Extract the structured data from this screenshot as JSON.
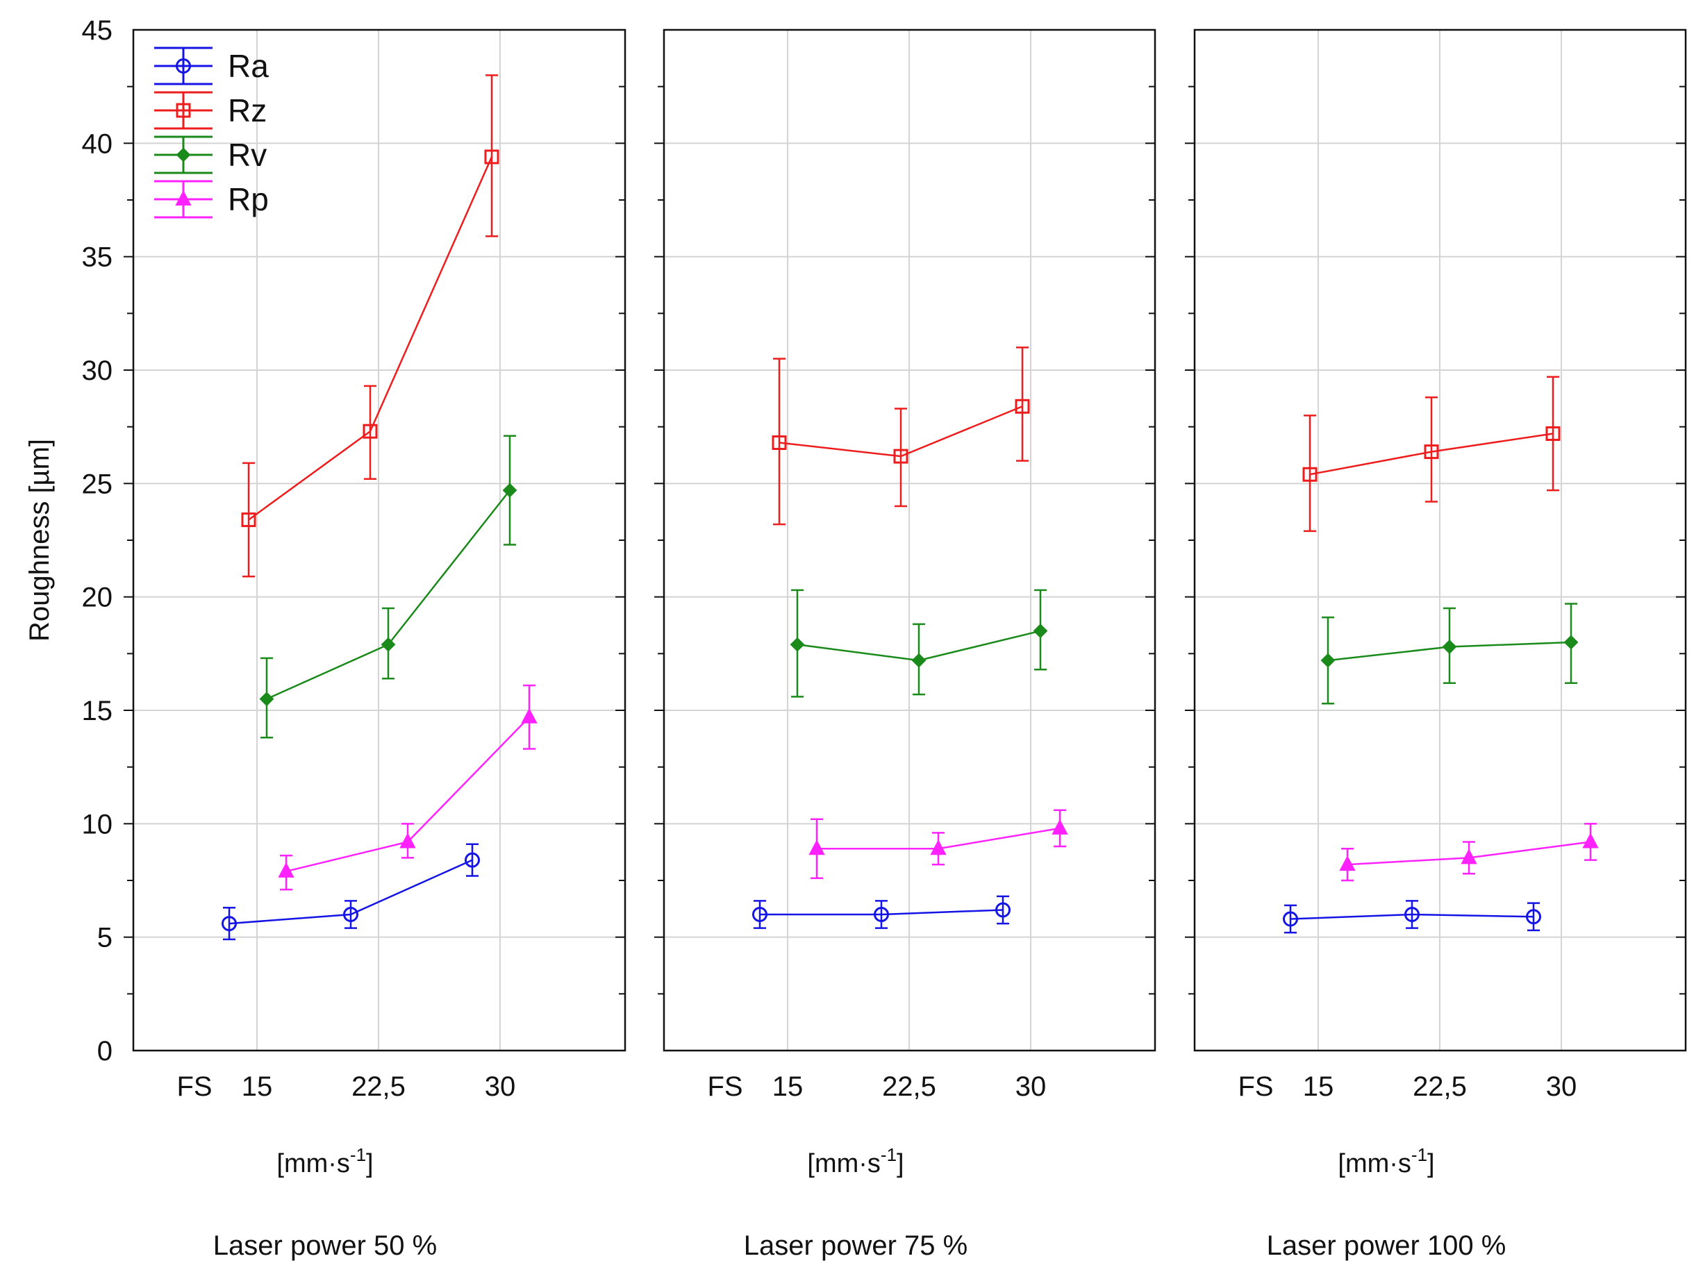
{
  "chart_data": {
    "type": "line",
    "ylabel": "Roughness [µm]",
    "ylim": [
      0,
      45
    ],
    "yticks": [
      0,
      5,
      10,
      15,
      20,
      25,
      30,
      35,
      40,
      45
    ],
    "grid": true,
    "legend_position": "top-left",
    "x_unit": "[mm·s",
    "x_unit_exp": "-1",
    "x_unit_close": "]",
    "x_categories": [
      "15",
      "22,5",
      "30"
    ],
    "x_prefix_label": "FS",
    "series_styles": [
      {
        "name": "Ra",
        "color": "#1414e6",
        "marker": "circle"
      },
      {
        "name": "Rz",
        "color": "#ee1c1c",
        "marker": "square"
      },
      {
        "name": "Rv",
        "color": "#1a8a1a",
        "marker": "diamond"
      },
      {
        "name": "Rp",
        "color": "#ff22ff",
        "marker": "triangle"
      }
    ],
    "panels": [
      {
        "title": "Laser power 50 %",
        "series": [
          {
            "name": "Ra",
            "values": [
              5.6,
              6.0,
              8.4
            ],
            "err_low": [
              4.9,
              5.4,
              7.7
            ],
            "err_high": [
              6.3,
              6.6,
              9.1
            ]
          },
          {
            "name": "Rz",
            "values": [
              23.4,
              27.3,
              39.4
            ],
            "err_low": [
              20.9,
              25.2,
              35.9
            ],
            "err_high": [
              25.9,
              29.3,
              43.0
            ]
          },
          {
            "name": "Rv",
            "values": [
              15.5,
              17.9,
              24.7
            ],
            "err_low": [
              13.8,
              16.4,
              22.3
            ],
            "err_high": [
              17.3,
              19.5,
              27.1
            ]
          },
          {
            "name": "Rp",
            "values": [
              7.9,
              9.2,
              14.7
            ],
            "err_low": [
              7.1,
              8.5,
              13.3
            ],
            "err_high": [
              8.6,
              10.0,
              16.1
            ]
          }
        ]
      },
      {
        "title": "Laser power 75 %",
        "series": [
          {
            "name": "Ra",
            "values": [
              6.0,
              6.0,
              6.2
            ],
            "err_low": [
              5.4,
              5.4,
              5.6
            ],
            "err_high": [
              6.6,
              6.6,
              6.8
            ]
          },
          {
            "name": "Rz",
            "values": [
              26.8,
              26.2,
              28.4
            ],
            "err_low": [
              23.2,
              24.0,
              26.0
            ],
            "err_high": [
              30.5,
              28.3,
              31.0
            ]
          },
          {
            "name": "Rv",
            "values": [
              17.9,
              17.2,
              18.5
            ],
            "err_low": [
              15.6,
              15.7,
              16.8
            ],
            "err_high": [
              20.3,
              18.8,
              20.3
            ]
          },
          {
            "name": "Rp",
            "values": [
              8.9,
              8.9,
              9.8
            ],
            "err_low": [
              7.6,
              8.2,
              9.0
            ],
            "err_high": [
              10.2,
              9.6,
              10.6
            ]
          }
        ]
      },
      {
        "title": "Laser power 100 %",
        "series": [
          {
            "name": "Ra",
            "values": [
              5.8,
              6.0,
              5.9
            ],
            "err_low": [
              5.2,
              5.4,
              5.3
            ],
            "err_high": [
              6.4,
              6.6,
              6.5
            ]
          },
          {
            "name": "Rz",
            "values": [
              25.4,
              26.4,
              27.2
            ],
            "err_low": [
              22.9,
              24.2,
              24.7
            ],
            "err_high": [
              28.0,
              28.8,
              29.7
            ]
          },
          {
            "name": "Rv",
            "values": [
              17.2,
              17.8,
              18.0
            ],
            "err_low": [
              15.3,
              16.2,
              16.2
            ],
            "err_high": [
              19.1,
              19.5,
              19.7
            ]
          },
          {
            "name": "Rp",
            "values": [
              8.2,
              8.5,
              9.2
            ],
            "err_low": [
              7.5,
              7.8,
              8.4
            ],
            "err_high": [
              8.9,
              9.2,
              10.0
            ]
          }
        ]
      }
    ]
  }
}
